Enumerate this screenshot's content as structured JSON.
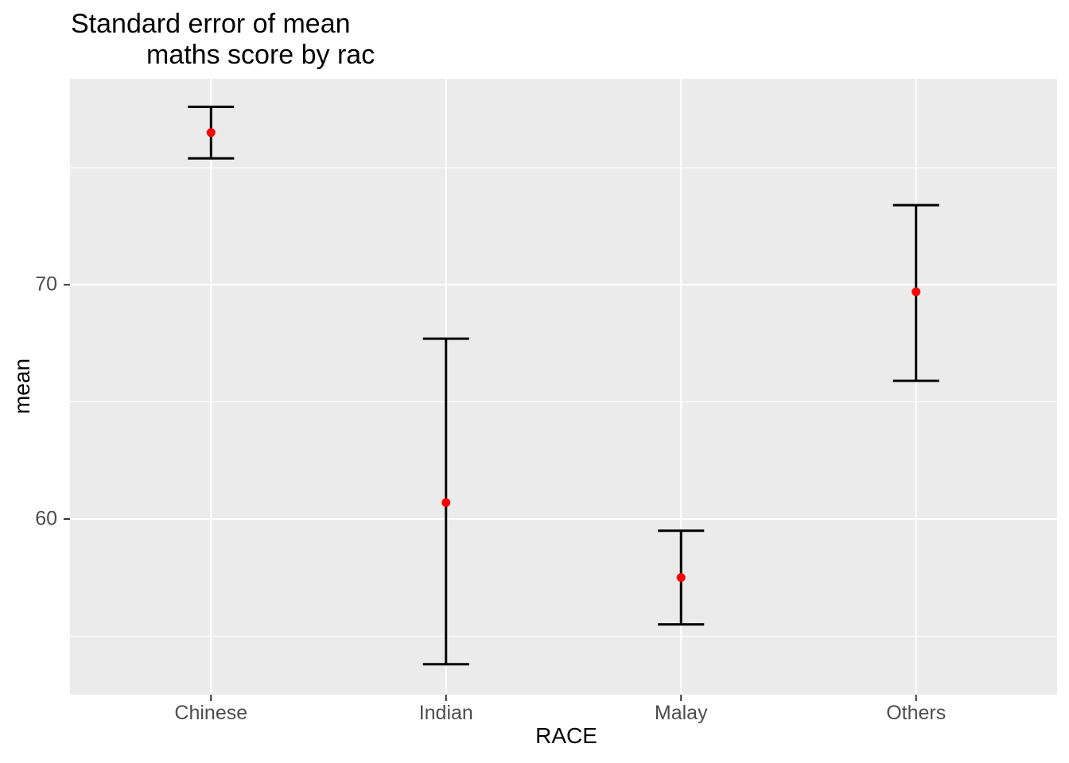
{
  "title": {
    "line1": "Standard error of mean",
    "line2": "maths score by rac"
  },
  "y_axis": {
    "label": "mean",
    "ticks": [
      "70",
      "60"
    ]
  },
  "x_axis": {
    "label": "RACE"
  },
  "chart_data": {
    "type": "scatter",
    "subtype": "errorbar",
    "title": "Standard error of mean maths score by rac",
    "xlabel": "RACE",
    "ylabel": "mean",
    "categories": [
      "Chinese",
      "Indian",
      "Malay",
      "Others"
    ],
    "series": [
      {
        "name": "mean",
        "values": [
          76.5,
          60.7,
          57.5,
          69.7
        ]
      },
      {
        "name": "lower",
        "values": [
          75.4,
          53.8,
          55.5,
          65.9
        ]
      },
      {
        "name": "upper",
        "values": [
          77.6,
          67.7,
          59.5,
          73.4
        ]
      }
    ],
    "ylim": [
      52.5,
      78.8
    ],
    "yticks_major": [
      60,
      70
    ],
    "yticks_minor": [
      55,
      65,
      75
    ],
    "grid": true,
    "legend": "none",
    "colors": {
      "point": "#FF0000",
      "errorbar": "#000000",
      "panel_bg": "#EBEBEB",
      "grid": "#FFFFFF",
      "axis_tick": "#333333",
      "tick_label": "#4D4D4D",
      "text": "#000000"
    }
  }
}
